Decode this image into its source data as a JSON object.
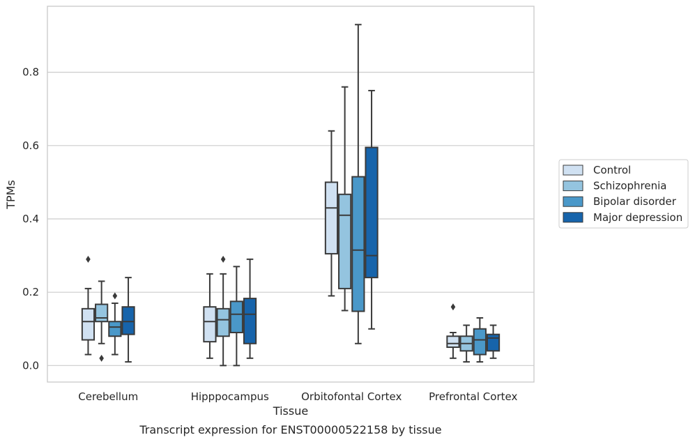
{
  "chart_data": {
    "type": "box",
    "xlabel": "Tissue",
    "ylabel": "TPMs",
    "caption": "Transcript expression for ENST00000522158 by tissue",
    "ylim": [
      -0.045,
      0.98
    ],
    "yticks": [
      0.0,
      0.2,
      0.4,
      0.6,
      0.8
    ],
    "ytick_labels": [
      "0.0",
      "0.2",
      "0.4",
      "0.6",
      "0.8"
    ],
    "grid": "horizontal",
    "legend_position": "right-center",
    "categories": [
      "Cerebellum",
      "Hipppocampus",
      "Orbitofontal Cortex",
      "Prefrontal Cortex"
    ],
    "series": [
      {
        "name": "Control",
        "color": "#d0e1f2",
        "boxes": [
          {
            "whisker_low": 0.03,
            "q1": 0.07,
            "median": 0.12,
            "q3": 0.155,
            "whisker_high": 0.21,
            "outliers": [
              0.29
            ]
          },
          {
            "whisker_low": 0.02,
            "q1": 0.065,
            "median": 0.12,
            "q3": 0.16,
            "whisker_high": 0.25,
            "outliers": []
          },
          {
            "whisker_low": 0.19,
            "q1": 0.305,
            "median": 0.43,
            "q3": 0.5,
            "whisker_high": 0.64,
            "outliers": []
          },
          {
            "whisker_low": 0.02,
            "q1": 0.05,
            "median": 0.06,
            "q3": 0.08,
            "whisker_high": 0.09,
            "outliers": [
              0.16
            ]
          }
        ]
      },
      {
        "name": "Schizophrenia",
        "color": "#94c4df",
        "boxes": [
          {
            "whisker_low": 0.06,
            "q1": 0.12,
            "median": 0.13,
            "q3": 0.167,
            "whisker_high": 0.23,
            "outliers": [
              0.02
            ]
          },
          {
            "whisker_low": 0.0,
            "q1": 0.08,
            "median": 0.125,
            "q3": 0.155,
            "whisker_high": 0.25,
            "outliers": [
              0.29
            ]
          },
          {
            "whisker_low": 0.15,
            "q1": 0.21,
            "median": 0.41,
            "q3": 0.467,
            "whisker_high": 0.76,
            "outliers": []
          },
          {
            "whisker_low": 0.01,
            "q1": 0.04,
            "median": 0.06,
            "q3": 0.08,
            "whisker_high": 0.11,
            "outliers": []
          }
        ]
      },
      {
        "name": "Bipolar disorder",
        "color": "#4a98c9",
        "boxes": [
          {
            "whisker_low": 0.03,
            "q1": 0.08,
            "median": 0.105,
            "q3": 0.12,
            "whisker_high": 0.17,
            "outliers": [
              0.19
            ]
          },
          {
            "whisker_low": 0.0,
            "q1": 0.09,
            "median": 0.14,
            "q3": 0.175,
            "whisker_high": 0.27,
            "outliers": []
          },
          {
            "whisker_low": 0.06,
            "q1": 0.148,
            "median": 0.315,
            "q3": 0.515,
            "whisker_high": 0.93,
            "outliers": []
          },
          {
            "whisker_low": 0.01,
            "q1": 0.03,
            "median": 0.07,
            "q3": 0.1,
            "whisker_high": 0.13,
            "outliers": []
          }
        ]
      },
      {
        "name": "Major depression",
        "color": "#1764ab",
        "boxes": [
          {
            "whisker_low": 0.01,
            "q1": 0.085,
            "median": 0.12,
            "q3": 0.16,
            "whisker_high": 0.24,
            "outliers": []
          },
          {
            "whisker_low": 0.02,
            "q1": 0.06,
            "median": 0.14,
            "q3": 0.183,
            "whisker_high": 0.29,
            "outliers": []
          },
          {
            "whisker_low": 0.1,
            "q1": 0.24,
            "median": 0.3,
            "q3": 0.595,
            "whisker_high": 0.75,
            "outliers": []
          },
          {
            "whisker_low": 0.02,
            "q1": 0.04,
            "median": 0.075,
            "q3": 0.085,
            "whisker_high": 0.11,
            "outliers": []
          }
        ]
      }
    ]
  }
}
